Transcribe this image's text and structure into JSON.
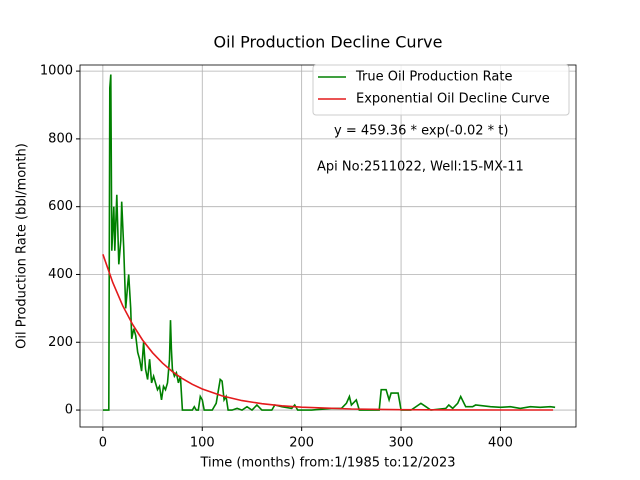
{
  "chart_data": {
    "type": "line",
    "title": "Oil Production Decline Curve",
    "xlabel": "Time (months) from:1/1985 to:12/2023",
    "ylabel": "Oil Production Rate (bbl/month)",
    "annotations": [
      "y = 459.36 * exp(-0.02 * t)",
      "Api No:2511022, Well:15-MX-11"
    ],
    "xlim": [
      -23,
      476
    ],
    "ylim": [
      -50,
      1018
    ],
    "xticks": [
      0,
      100,
      200,
      300,
      400
    ],
    "yticks": [
      0,
      200,
      400,
      600,
      800,
      1000
    ],
    "grid": true,
    "legend": "upper right",
    "series": [
      {
        "name": "True Oil Production Rate",
        "color": "#008000",
        "x": [
          0,
          5,
          6,
          7,
          8,
          9,
          11,
          12,
          14,
          16,
          18,
          19,
          21,
          23,
          25,
          26,
          28,
          29,
          31,
          33,
          35,
          37,
          39,
          41,
          43,
          45,
          47,
          49,
          51,
          53,
          55,
          57,
          59,
          61,
          63,
          65,
          67,
          68,
          69,
          70,
          72,
          74,
          76,
          78,
          80,
          82,
          84,
          90,
          92,
          94,
          96,
          98,
          100,
          102,
          110,
          114,
          118,
          120,
          122,
          124,
          126,
          130,
          135,
          140,
          145,
          150,
          155,
          160,
          170,
          173,
          180,
          190,
          193,
          196,
          210,
          230,
          240,
          245,
          248,
          250,
          255,
          258,
          265,
          278,
          280,
          285,
          288,
          290,
          297,
          300,
          310,
          320,
          325,
          330,
          345,
          348,
          352,
          357,
          360,
          365,
          372,
          375,
          390,
          400,
          410,
          420,
          430,
          440,
          450,
          455
        ],
        "values": [
          0,
          0,
          0,
          950,
          990,
          470,
          600,
          470,
          635,
          430,
          500,
          615,
          480,
          300,
          370,
          400,
          300,
          210,
          240,
          220,
          170,
          150,
          115,
          200,
          120,
          90,
          150,
          80,
          100,
          80,
          60,
          70,
          30,
          70,
          60,
          80,
          150,
          265,
          180,
          120,
          100,
          110,
          80,
          100,
          0,
          0,
          0,
          0,
          10,
          0,
          0,
          40,
          30,
          0,
          0,
          20,
          90,
          85,
          30,
          40,
          0,
          0,
          5,
          0,
          10,
          0,
          15,
          0,
          0,
          15,
          10,
          5,
          15,
          0,
          0,
          5,
          5,
          20,
          40,
          15,
          30,
          0,
          0,
          0,
          60,
          60,
          30,
          50,
          50,
          0,
          0,
          20,
          10,
          0,
          5,
          15,
          5,
          20,
          40,
          10,
          10,
          15,
          10,
          8,
          10,
          5,
          10,
          8,
          10,
          8
        ]
      },
      {
        "name": "Exponential Oil Decline Curve",
        "color": "#e31a1c",
        "x": [
          0,
          10,
          20,
          30,
          40,
          50,
          60,
          70,
          80,
          90,
          100,
          120,
          140,
          160,
          180,
          200,
          250,
          300,
          350,
          400,
          453
        ],
        "values": [
          459.4,
          376.1,
          307.9,
          252.1,
          206.4,
          169.0,
          138.4,
          113.3,
          92.7,
          75.9,
          62.2,
          41.7,
          27.9,
          18.7,
          12.6,
          8.4,
          3.1,
          1.1,
          0.4,
          0.2,
          0.05
        ]
      }
    ]
  }
}
